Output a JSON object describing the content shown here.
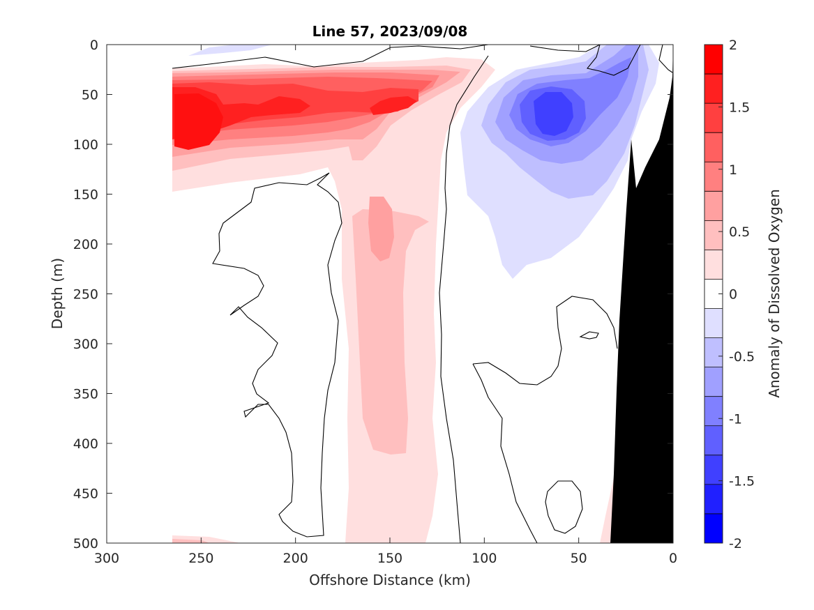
{
  "chart_data": {
    "type": "heatmap",
    "subtype": "filled-contour",
    "title": "Line 57, 2023/09/08",
    "xlabel": "Offshore Distance (km)",
    "ylabel": "Depth (m)",
    "xlim": [
      300,
      0
    ],
    "ylim": [
      500,
      0
    ],
    "x_reversed": true,
    "y_reversed": true,
    "xticks": [
      "300",
      "250",
      "200",
      "150",
      "100",
      "50",
      "0"
    ],
    "yticks": [
      "0",
      "50",
      "100",
      "150",
      "200",
      "250",
      "300",
      "350",
      "400",
      "450",
      "500"
    ],
    "colorbar": {
      "label": "Anomaly of Dissolved Oxygen",
      "range": [
        -2,
        2
      ],
      "tick_labels": [
        "2",
        "1.5",
        "1",
        "0.5",
        "0",
        "-0.5",
        "-1",
        "-1.5",
        "-2"
      ],
      "tick_values": [
        2,
        1.5,
        1,
        0.5,
        0,
        -0.5,
        -1,
        -1.5,
        -2
      ],
      "levels": [
        -2,
        -1.75,
        -1.5,
        -1.25,
        -1,
        -0.75,
        -0.5,
        -0.25,
        0,
        0.25,
        0.5,
        0.75,
        1,
        1.25,
        1.5,
        1.75,
        2
      ],
      "colors": [
        "#0000ff",
        "#2020ff",
        "#4040ff",
        "#6060ff",
        "#8080ff",
        "#a0a0ff",
        "#bfbfff",
        "#dfdfff",
        "#ffffff",
        "#ffdfdf",
        "#ffbfbf",
        "#ffa0a0",
        "#ff8080",
        "#ff6060",
        "#ff4040",
        "#ff2020",
        "#ff0000"
      ]
    },
    "features": [
      {
        "kind": "positive-anomaly-core",
        "x": 255,
        "y": 75,
        "value": 1.75
      },
      {
        "kind": "positive-anomaly-core",
        "x": 205,
        "y": 62,
        "value": 1.5
      },
      {
        "kind": "positive-anomaly-core",
        "x": 150,
        "y": 62,
        "value": 1.5
      },
      {
        "kind": "positive-anomaly-core",
        "x": 150,
        "y": 305,
        "value": 0.75
      },
      {
        "kind": "negative-anomaly-core",
        "x": 63,
        "y": 70,
        "value": -1.5
      }
    ],
    "bathymetry_color": "#000000",
    "zero_contour_color": "#000000"
  }
}
